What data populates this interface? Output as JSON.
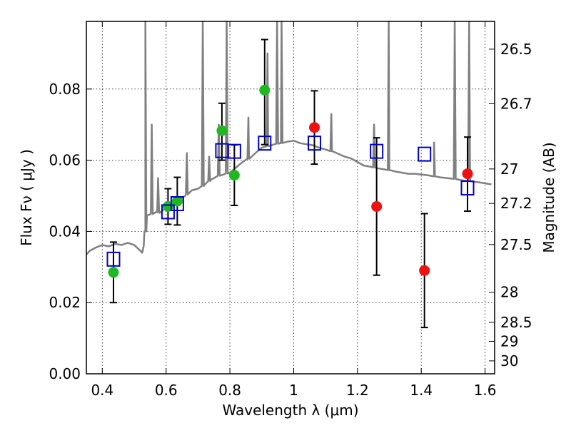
{
  "chart_data": {
    "type": "scatter",
    "xlabel": "Wavelength  λ (μm)",
    "ylabel": "Flux  Fν  ( μJy )",
    "ylabel_right": "Magnitude (AB)",
    "xlim": [
      0.35,
      1.63
    ],
    "ylim": [
      0.0,
      0.099
    ],
    "grid": true,
    "x_ticks": [
      0.4,
      0.6,
      0.8,
      1.0,
      1.2,
      1.4,
      1.6
    ],
    "x_tick_labels": [
      "0.4",
      "0.6",
      "0.8",
      "1",
      "1.2",
      "1.4",
      "1.6"
    ],
    "y_ticks": [
      0.0,
      0.02,
      0.04,
      0.06,
      0.08
    ],
    "y_tick_labels": [
      "0.00",
      "0.02",
      "0.04",
      "0.06",
      "0.08"
    ],
    "y_right_ticks": [
      {
        "label": "26.5",
        "mag": 26.5
      },
      {
        "label": "26.7",
        "mag": 26.7
      },
      {
        "label": "27",
        "mag": 27.0
      },
      {
        "label": "27.2",
        "mag": 27.2
      },
      {
        "label": "27.5",
        "mag": 27.5
      },
      {
        "label": "28",
        "mag": 28.0
      },
      {
        "label": "28.5",
        "mag": 28.5
      },
      {
        "label": "29",
        "mag": 29.0
      },
      {
        "label": "30",
        "mag": 30.0
      }
    ],
    "colors": {
      "model": "#808080",
      "detection": "#1fb81f",
      "nondetection": "#ee1111",
      "model_photometry": "#0000cc",
      "error_bar": "#000000"
    },
    "series": [
      {
        "kind": "points",
        "marker": "circle",
        "color": "#1fb81f",
        "x": [
          0.435,
          0.606,
          0.635,
          0.775,
          0.814,
          0.909
        ],
        "y": [
          0.0285,
          0.047,
          0.0485,
          0.0683,
          0.0558,
          0.0797
        ],
        "err_low": [
          0.0085,
          0.005,
          0.0067,
          0.0083,
          0.0085,
          0.0153
        ],
        "err_high": [
          0.0085,
          0.005,
          0.0067,
          0.0077,
          0.0085,
          0.0142
        ]
      },
      {
        "kind": "points",
        "marker": "circle",
        "color": "#ee1111",
        "x": [
          1.065,
          1.26,
          1.41,
          1.545
        ],
        "y": [
          0.0692,
          0.047,
          0.029,
          0.0562
        ],
        "err_low": [
          0.0103,
          0.0193,
          0.016,
          0.0105
        ],
        "err_high": [
          0.0103,
          0.0193,
          0.016,
          0.0103
        ]
      },
      {
        "kind": "points",
        "marker": "open-square",
        "color": "#0000cc",
        "x": [
          0.435,
          0.606,
          0.635,
          0.775,
          0.814,
          0.909,
          1.065,
          1.26,
          1.41,
          1.545
        ],
        "y": [
          0.0322,
          0.0455,
          0.0478,
          0.0627,
          0.0625,
          0.0648,
          0.0648,
          0.0625,
          0.0617,
          0.0522
        ]
      },
      {
        "kind": "line",
        "color": "#808080",
        "x": [
          0.35,
          0.36,
          0.38,
          0.4,
          0.42,
          0.44,
          0.46,
          0.48,
          0.5,
          0.52,
          0.525,
          0.53,
          0.535,
          0.54,
          0.55,
          0.56,
          0.57,
          0.58,
          0.59,
          0.6,
          0.62,
          0.64,
          0.66,
          0.68,
          0.7,
          0.72,
          0.74,
          0.76,
          0.78,
          0.8,
          0.82,
          0.84,
          0.86,
          0.88,
          0.9,
          0.92,
          0.94,
          0.96,
          0.98,
          1.0,
          1.02,
          1.04,
          1.06,
          1.08,
          1.1,
          1.12,
          1.14,
          1.16,
          1.18,
          1.2,
          1.22,
          1.24,
          1.26,
          1.28,
          1.3,
          1.32,
          1.34,
          1.36,
          1.38,
          1.4,
          1.42,
          1.44,
          1.46,
          1.48,
          1.5,
          1.52,
          1.54,
          1.56,
          1.58,
          1.6,
          1.62
        ],
        "y": [
          0.0335,
          0.0345,
          0.0355,
          0.0362,
          0.0358,
          0.0365,
          0.0362,
          0.0368,
          0.0362,
          0.0345,
          0.034,
          0.036,
          0.04,
          0.0445,
          0.0448,
          0.045,
          0.0455,
          0.0452,
          0.046,
          0.0465,
          0.0475,
          0.0488,
          0.05,
          0.0515,
          0.052,
          0.053,
          0.0545,
          0.0555,
          0.056,
          0.0565,
          0.058,
          0.0595,
          0.0605,
          0.062,
          0.0635,
          0.064,
          0.0645,
          0.0648,
          0.0652,
          0.0655,
          0.0648,
          0.0645,
          0.0642,
          0.0635,
          0.063,
          0.0625,
          0.0618,
          0.061,
          0.0605,
          0.0595,
          0.0585,
          0.0582,
          0.0578,
          0.0575,
          0.0572,
          0.0568,
          0.0565,
          0.0562,
          0.0562,
          0.056,
          0.0558,
          0.0555,
          0.0552,
          0.055,
          0.0548,
          0.0545,
          0.0542,
          0.054,
          0.0538,
          0.0535,
          0.0532
        ]
      }
    ],
    "emission_lines": [
      {
        "x": 0.535,
        "peak": 0.099
      },
      {
        "x": 0.555,
        "peak": 0.07
      },
      {
        "x": 0.575,
        "peak": 0.055
      },
      {
        "x": 0.665,
        "peak": 0.062
      },
      {
        "x": 0.715,
        "peak": 0.099
      },
      {
        "x": 0.735,
        "peak": 0.061
      },
      {
        "x": 0.765,
        "peak": 0.07
      },
      {
        "x": 0.79,
        "peak": 0.099
      },
      {
        "x": 0.858,
        "peak": 0.072
      },
      {
        "x": 0.918,
        "peak": 0.09
      },
      {
        "x": 0.948,
        "peak": 0.099
      },
      {
        "x": 0.962,
        "peak": 0.099
      },
      {
        "x": 1.118,
        "peak": 0.073
      },
      {
        "x": 1.252,
        "peak": 0.07
      },
      {
        "x": 1.298,
        "peak": 0.099
      },
      {
        "x": 1.44,
        "peak": 0.065
      },
      {
        "x": 1.505,
        "peak": 0.099
      },
      {
        "x": 1.55,
        "peak": 0.099
      }
    ]
  }
}
